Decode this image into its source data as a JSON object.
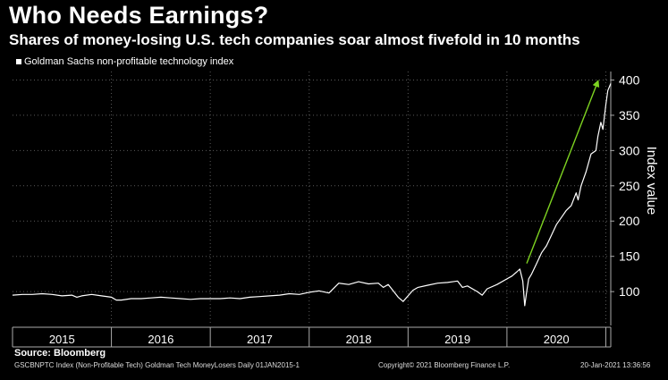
{
  "chart_data": {
    "type": "line",
    "title": "Who Needs Earnings?",
    "subtitle": "Shares of money-losing U.S. tech companies soar almost fivefold in 10 months",
    "ylabel": "Index value",
    "xlabel": "",
    "ylim": [
      52,
      412
    ],
    "yticks": [
      100,
      150,
      200,
      250,
      300,
      350,
      400
    ],
    "xlim": [
      2015.0,
      2021.05
    ],
    "xtick_labels": [
      "2015",
      "2016",
      "2017",
      "2018",
      "2019",
      "2020"
    ],
    "grid": true,
    "legend_position": "top-left",
    "series": [
      {
        "name": "Goldman Sachs non-profitable technology index",
        "color": "#ffffff",
        "x": [
          2015.0,
          2015.1,
          2015.2,
          2015.3,
          2015.4,
          2015.5,
          2015.6,
          2015.65,
          2015.7,
          2015.8,
          2015.9,
          2016.0,
          2016.05,
          2016.1,
          2016.2,
          2016.3,
          2016.4,
          2016.5,
          2016.6,
          2016.7,
          2016.8,
          2016.9,
          2017.0,
          2017.1,
          2017.2,
          2017.3,
          2017.4,
          2017.5,
          2017.6,
          2017.7,
          2017.8,
          2017.9,
          2018.0,
          2018.1,
          2018.2,
          2018.25,
          2018.3,
          2018.4,
          2018.5,
          2018.6,
          2018.7,
          2018.75,
          2018.8,
          2018.9,
          2018.95,
          2019.0,
          2019.05,
          2019.1,
          2019.2,
          2019.3,
          2019.4,
          2019.5,
          2019.55,
          2019.6,
          2019.7,
          2019.75,
          2019.8,
          2019.9,
          2020.0,
          2020.05,
          2020.1,
          2020.13,
          2020.16,
          2020.18,
          2020.2,
          2020.22,
          2020.25,
          2020.3,
          2020.35,
          2020.4,
          2020.45,
          2020.5,
          2020.55,
          2020.6,
          2020.65,
          2020.7,
          2020.72,
          2020.75,
          2020.8,
          2020.85,
          2020.9,
          2020.92,
          2020.95,
          2020.97,
          2021.0,
          2021.02,
          2021.05
        ],
        "values": [
          95,
          96,
          96,
          97,
          96,
          94,
          95,
          92,
          94,
          96,
          94,
          92,
          88,
          88,
          90,
          90,
          91,
          92,
          91,
          90,
          89,
          90,
          90,
          90,
          91,
          90,
          92,
          93,
          94,
          95,
          97,
          96,
          99,
          101,
          98,
          105,
          112,
          110,
          114,
          111,
          112,
          106,
          110,
          92,
          86,
          94,
          102,
          106,
          109,
          112,
          113,
          115,
          106,
          108,
          100,
          95,
          104,
          110,
          118,
          122,
          128,
          132,
          115,
          80,
          100,
          118,
          125,
          140,
          155,
          165,
          180,
          195,
          205,
          215,
          222,
          240,
          230,
          250,
          270,
          295,
          300,
          320,
          340,
          330,
          365,
          385,
          395
        ]
      }
    ],
    "annotations": [
      {
        "type": "arrow",
        "color": "#7ed321",
        "from": {
          "x": 2020.2,
          "y": 140
        },
        "to": {
          "x": 2020.92,
          "y": 398
        }
      }
    ]
  },
  "header": {
    "title": "Who Needs Earnings?",
    "subtitle": "Shares of money-losing U.S. tech companies soar almost fivefold in 10 months",
    "legend_label": "Goldman Sachs non-profitable technology index"
  },
  "footer": {
    "source": "Source: Bloomberg",
    "ticker_info": "GSCBNPTC Index (Non-Profitable Tech) Goldman Tech MoneyLosers  Daily 01JAN2015-1",
    "copyright": "Copyright© 2021 Bloomberg Finance L.P.",
    "timestamp": "20-Jan-2021 13:36:56"
  }
}
